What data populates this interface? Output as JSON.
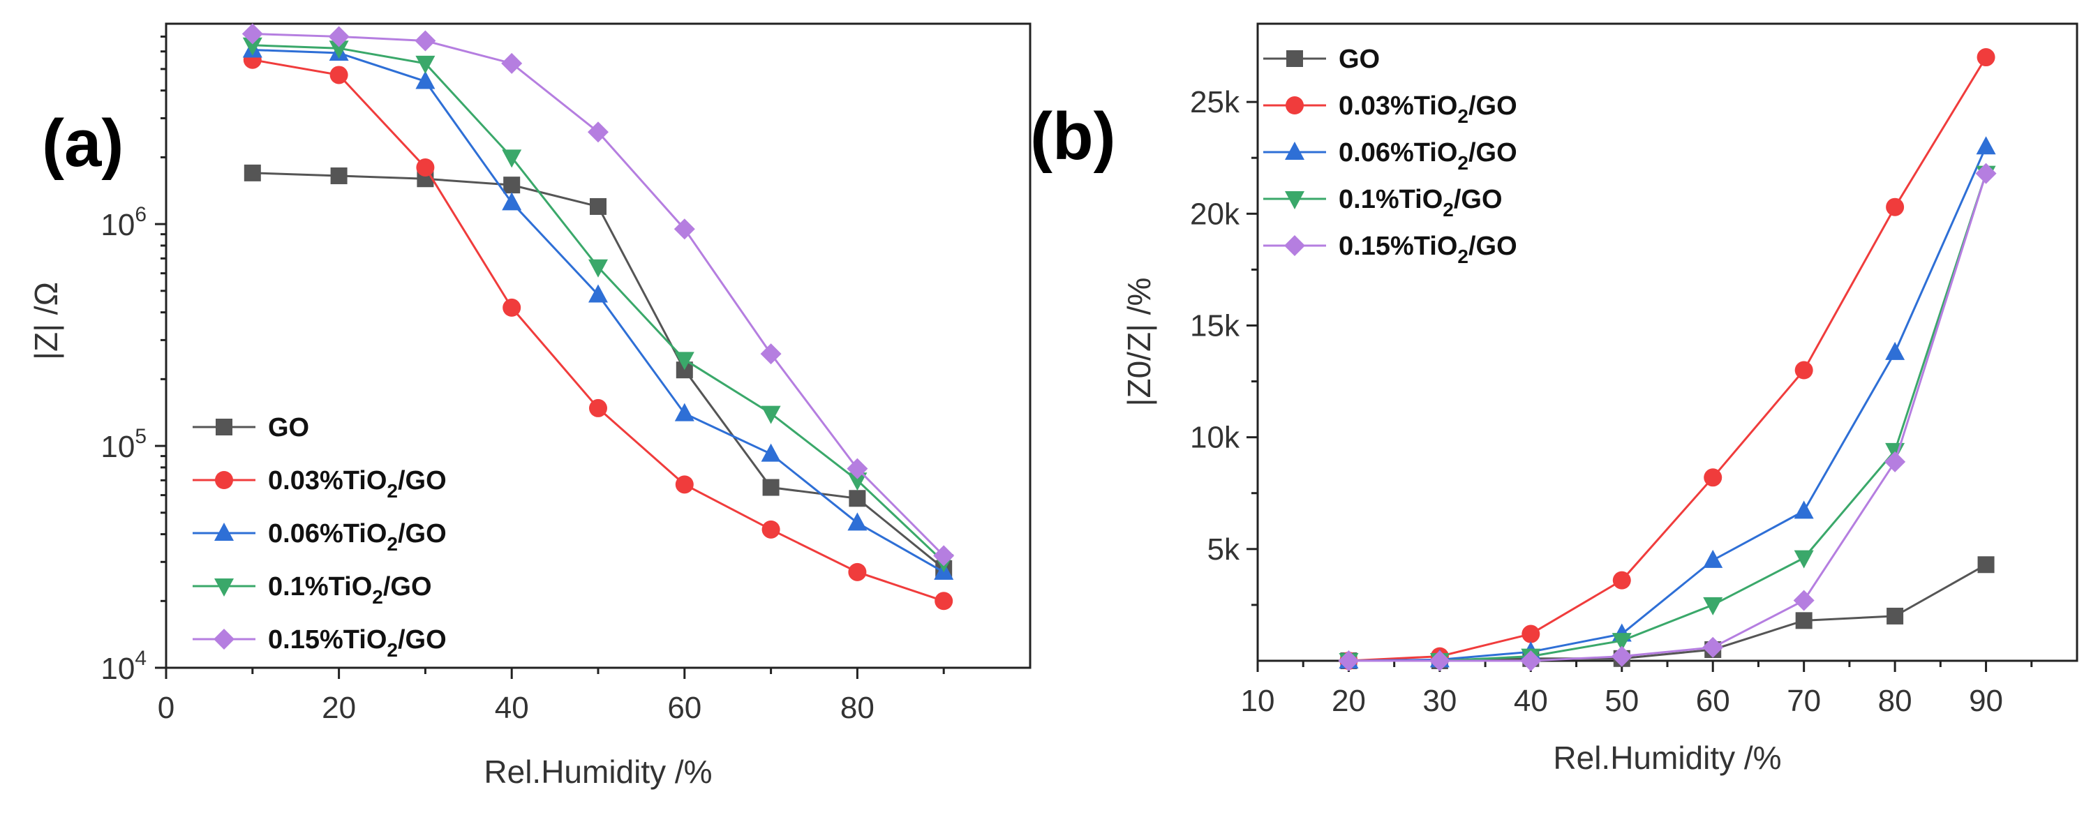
{
  "chart_data": [
    {
      "panel": "(a)",
      "type": "line",
      "yscale": "log",
      "xlabel": "Rel.Humidity /%",
      "ylabel": "|Z| /Ω",
      "xlim": [
        0,
        100
      ],
      "ylim": [
        10000,
        8000000
      ],
      "x_ticks": [
        0,
        20,
        40,
        60,
        80
      ],
      "x_tick_labels": [
        "0",
        "20",
        "40",
        "60",
        "80"
      ],
      "y_ticks": [
        10000,
        100000,
        1000000
      ],
      "y_tick_labels": [
        {
          "base": "10",
          "exp": "4"
        },
        {
          "base": "10",
          "exp": "5"
        },
        {
          "base": "10",
          "exp": "6"
        }
      ],
      "legend_position": "bottom-left",
      "x": [
        10,
        20,
        30,
        40,
        50,
        60,
        70,
        80,
        90
      ],
      "series": [
        {
          "name": "GO",
          "prefix": "GO",
          "marker": "square",
          "color": "#555555",
          "values": [
            1700000,
            1650000,
            1600000,
            1500000,
            1200000,
            220000,
            65000,
            58000,
            28000
          ]
        },
        {
          "name": "0.03%TiO2/GO",
          "prefix": "0.03%TiO",
          "marker": "circle",
          "color": "#f03c3c",
          "values": [
            5500000,
            4700000,
            1800000,
            420000,
            148000,
            67000,
            42000,
            27000,
            20000
          ]
        },
        {
          "name": "0.06%TiO2/GO",
          "prefix": "0.06%TiO",
          "marker": "triangle-up",
          "color": "#2e6fd6",
          "values": [
            6100000,
            5900000,
            4400000,
            1250000,
            480000,
            140000,
            92000,
            45000,
            27000
          ]
        },
        {
          "name": "0.1%TiO2/GO",
          "prefix": "0.1%TiO",
          "marker": "triangle-down",
          "color": "#3aa86a",
          "values": [
            6400000,
            6200000,
            5300000,
            2000000,
            640000,
            245000,
            140000,
            70000,
            30000
          ]
        },
        {
          "name": "0.15%TiO2/GO",
          "prefix": "0.15%TiO",
          "marker": "diamond",
          "color": "#b57ee0",
          "values": [
            7200000,
            7000000,
            6700000,
            5300000,
            2600000,
            950000,
            260000,
            79000,
            32000
          ]
        }
      ]
    },
    {
      "panel": "(b)",
      "type": "line",
      "xlabel": "Rel.Humidity /%",
      "ylabel": "|Z0/Z| /%",
      "xlim": [
        10,
        100
      ],
      "ylim": [
        0,
        28500
      ],
      "x_ticks": [
        10,
        20,
        30,
        40,
        50,
        60,
        70,
        80,
        90
      ],
      "x_tick_labels": [
        "10",
        "20",
        "30",
        "40",
        "50",
        "60",
        "70",
        "80",
        "90"
      ],
      "y_ticks": [
        5000,
        10000,
        15000,
        20000,
        25000
      ],
      "y_tick_labels": [
        "5k",
        "10k",
        "15k",
        "20k",
        "25k"
      ],
      "legend_position": "top-left",
      "x": [
        20,
        30,
        40,
        50,
        60,
        70,
        80,
        90
      ],
      "series": [
        {
          "name": "GO",
          "prefix": "GO",
          "marker": "square",
          "color": "#555555",
          "values": [
            0,
            0,
            100,
            100,
            500,
            1800,
            2000,
            4300
          ]
        },
        {
          "name": "0.03%TiO2/GO",
          "prefix": "0.03%TiO",
          "marker": "circle",
          "color": "#f03c3c",
          "values": [
            0,
            200,
            1200,
            3600,
            8200,
            13000,
            20300,
            27000
          ]
        },
        {
          "name": "0.06%TiO2/GO",
          "prefix": "0.06%TiO",
          "marker": "triangle-up",
          "color": "#2e6fd6",
          "values": [
            0,
            50,
            400,
            1200,
            4500,
            6700,
            13800,
            23000
          ]
        },
        {
          "name": "0.1%TiO2/GO",
          "prefix": "0.1%TiO",
          "marker": "triangle-down",
          "color": "#3aa86a",
          "values": [
            0,
            0,
            200,
            900,
            2500,
            4600,
            9400,
            21800
          ]
        },
        {
          "name": "0.15%TiO2/GO",
          "prefix": "0.15%TiO",
          "marker": "diamond",
          "color": "#b57ee0",
          "values": [
            0,
            0,
            0,
            200,
            600,
            2700,
            8900,
            21800
          ]
        }
      ]
    }
  ],
  "legend_subscript": "2",
  "legend_suffix": "/GO"
}
